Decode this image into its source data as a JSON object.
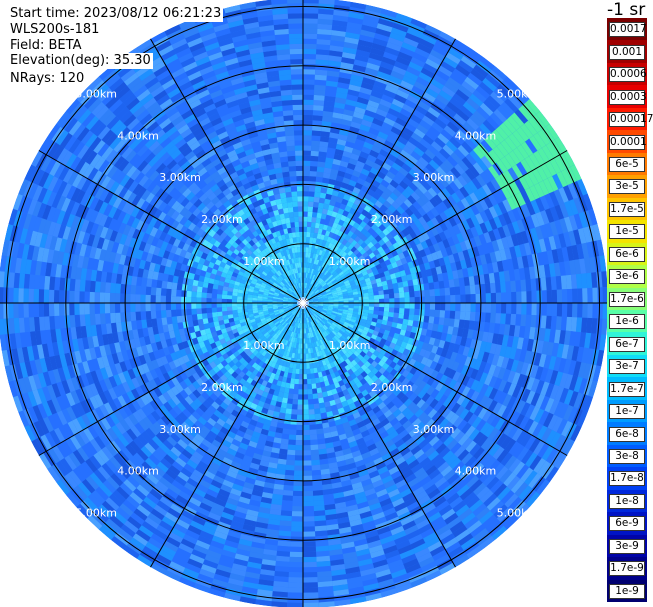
{
  "info": {
    "start_time": "Start time: 2023/08/12 06:21:23",
    "instrument": "WLS200s-181",
    "field": "Field: BETA",
    "elevation": "Elevation(deg): 35.30",
    "nrays": "NRays: 120"
  },
  "range_labels": [
    "1.00km",
    "2.00km",
    "3.00km",
    "4.00km",
    "5.00km"
  ],
  "colorbar": {
    "unit": "-1 sr",
    "labels": [
      "0.0017",
      "0.001",
      "0.0006",
      "0.0003",
      "0.00017",
      "0.0001",
      "6e-5",
      "3e-5",
      "1.7e-5",
      "1e-5",
      "6e-6",
      "3e-6",
      "1.7e-6",
      "1e-6",
      "6e-7",
      "3e-7",
      "1.7e-7",
      "1e-7",
      "6e-8",
      "3e-8",
      "1.7e-8",
      "1e-8",
      "6e-9",
      "3e-9",
      "1.7e-9",
      "1e-9"
    ],
    "colors": [
      "#7a0000",
      "#a00000",
      "#c80000",
      "#e80000",
      "#ff1a00",
      "#ff4a00",
      "#ff7a00",
      "#ffa000",
      "#ffc400",
      "#f4e400",
      "#d8f418",
      "#b0ff48",
      "#88ff78",
      "#58ffa8",
      "#30f4d8",
      "#10dcf8",
      "#00bcff",
      "#009cff",
      "#007cff",
      "#005cff",
      "#0040f4",
      "#0028dc",
      "#0014c4",
      "#0004a8",
      "#00008a",
      "#000070"
    ]
  },
  "colors": {
    "background_field": "#2a78ff",
    "near_field": "#30c8ff",
    "hotspot": "#50f0a8"
  }
}
